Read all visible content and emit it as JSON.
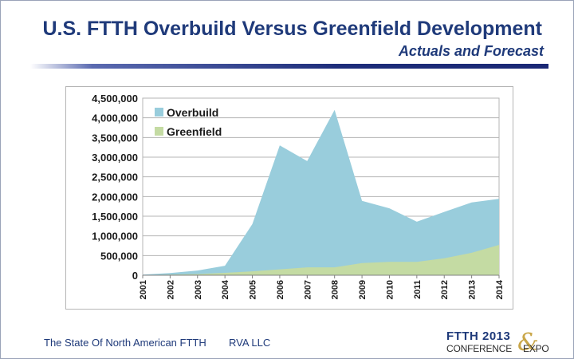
{
  "slide": {
    "title": "U.S. FTTH Overbuild Versus Greenfield Development",
    "subtitle": "Actuals and Forecast"
  },
  "footer": {
    "text": "The State Of North American FTTH",
    "org": "RVA LLC"
  },
  "logo": {
    "line1": "FTTH 2013",
    "line2a": "CONFERENCE",
    "amp": "&",
    "line2b": "EXPO"
  },
  "colors": {
    "overbuild": "#99cddc",
    "greenfield": "#c4dba3",
    "title": "#1f3a7a"
  },
  "chart_data": {
    "type": "area",
    "stacked": true,
    "categories": [
      "2001",
      "2002",
      "2003",
      "2004",
      "2005",
      "2006",
      "2007",
      "2008",
      "2009",
      "2010",
      "2011",
      "2012",
      "2013",
      "2014"
    ],
    "series": [
      {
        "name": "Overbuild",
        "values": [
          10000,
          40000,
          90000,
          180000,
          1200000,
          3150000,
          2700000,
          4000000,
          1580000,
          1360000,
          1020000,
          1180000,
          1280000,
          1170000
        ]
      },
      {
        "name": "Greenfield",
        "values": [
          5000,
          15000,
          30000,
          60000,
          100000,
          150000,
          200000,
          200000,
          310000,
          340000,
          340000,
          430000,
          570000,
          770000
        ]
      }
    ],
    "ylim": [
      0,
      4500000
    ],
    "yticks": [
      "4,500,000",
      "4,000,000",
      "3,500,000",
      "3,000,000",
      "2,500,000",
      "2,000,000",
      "1,500,000",
      "1,000,000",
      "500,000",
      "0"
    ],
    "grid": true,
    "legend_position": "top-left"
  }
}
